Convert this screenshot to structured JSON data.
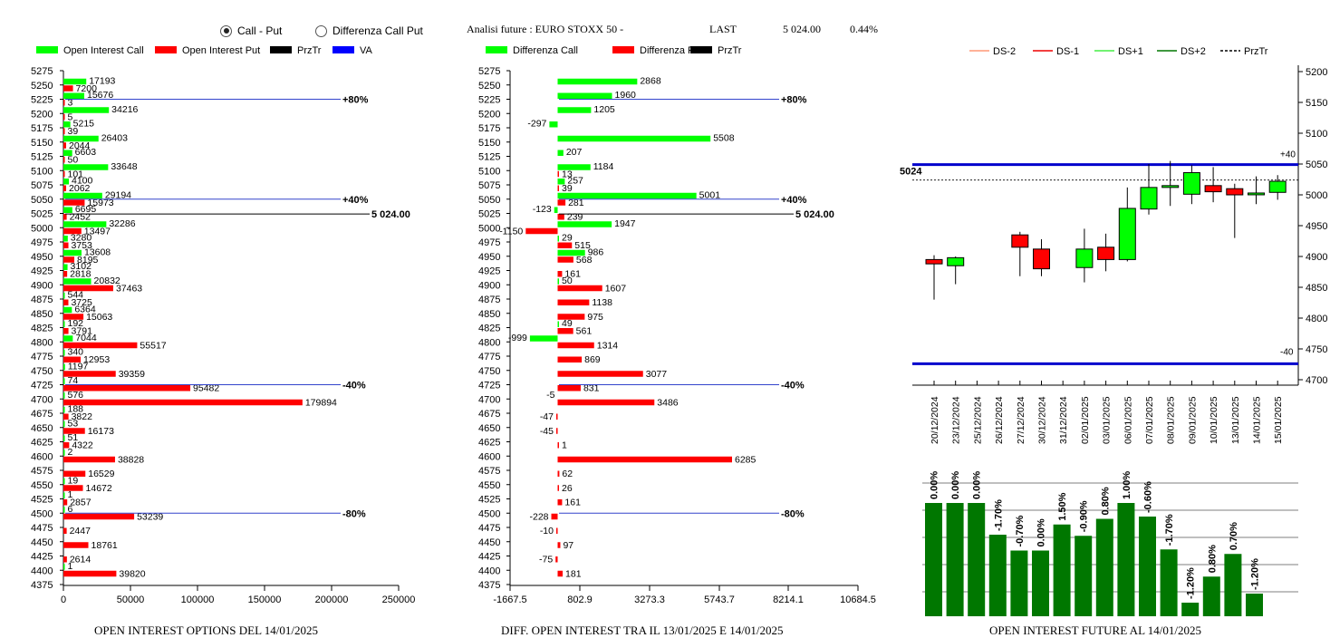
{
  "controls": {
    "option_call_put": "Call - Put",
    "option_diff": "Differenza Call Put"
  },
  "header": {
    "title": "Analisi future : EURO STOXX 50 -",
    "last_label": "LAST",
    "last_value": "5 024.00",
    "change": "0.44%"
  },
  "colors": {
    "call": "#00ff00",
    "put": "#ff0000",
    "va": "#0000ff",
    "oi_future": "#007700"
  },
  "chart_data": [
    {
      "type": "bar",
      "orientation": "horizontal",
      "title": "OPEN INTEREST OPTIONS DEL 14/01/2025",
      "legend": [
        "Open Interest Call",
        "Open Interest Put",
        "PrzTr",
        "VA"
      ],
      "legend_placement": "top",
      "strikes": [
        5275,
        5250,
        5225,
        5200,
        5175,
        5150,
        5125,
        5100,
        5075,
        5050,
        5025,
        5000,
        4975,
        4950,
        4925,
        4900,
        4875,
        4850,
        4825,
        4800,
        4775,
        4750,
        4725,
        4700,
        4675,
        4650,
        4625,
        4600,
        4575,
        4550,
        4525,
        4500,
        4475,
        4450,
        4425,
        4400,
        4375
      ],
      "call": [
        null,
        17193,
        15676,
        34216,
        5215,
        26403,
        6603,
        33648,
        4100,
        29194,
        6695,
        32286,
        3280,
        13608,
        3102,
        20832,
        544,
        6364,
        192,
        7044,
        340,
        1197,
        74,
        576,
        188,
        53,
        51,
        2,
        null,
        19,
        1,
        6,
        null,
        null,
        null,
        1,
        null
      ],
      "put": [
        null,
        7200,
        3,
        5,
        39,
        2044,
        50,
        101,
        2062,
        15973,
        2452,
        13497,
        3753,
        8195,
        2818,
        37463,
        3725,
        15063,
        3791,
        55517,
        12953,
        39359,
        95482,
        179894,
        3822,
        16173,
        4322,
        38828,
        16529,
        14672,
        2857,
        53239,
        2447,
        18761,
        2614,
        39820,
        null
      ],
      "xticks": [
        "0",
        "50000",
        "100000",
        "150000",
        "200000",
        "250000"
      ],
      "xlim": [
        0,
        250000
      ],
      "reference_lines": [
        {
          "label": "+80%",
          "strike": 5225,
          "color": "va"
        },
        {
          "label": "+40%",
          "strike": 5050,
          "color": "va"
        },
        {
          "label": "5 024.00",
          "strike": 5024,
          "color": "prz"
        },
        {
          "label": "-40%",
          "strike": 4725,
          "color": "va"
        },
        {
          "label": "-80%",
          "strike": 4500,
          "color": "va"
        }
      ]
    },
    {
      "type": "bar",
      "orientation": "horizontal",
      "title": "DIFF. OPEN INTEREST TRA IL 13/01/2025 E 14/01/2025",
      "legend": [
        "Differenza Call",
        "Differenza Put",
        "PrzTr"
      ],
      "legend_placement": "top",
      "strikes": [
        5275,
        5250,
        5225,
        5200,
        5175,
        5150,
        5125,
        5100,
        5075,
        5050,
        5025,
        5000,
        4975,
        4950,
        4925,
        4900,
        4875,
        4850,
        4825,
        4800,
        4775,
        4750,
        4725,
        4700,
        4675,
        4650,
        4625,
        4600,
        4575,
        4550,
        4525,
        4500,
        4475,
        4450,
        4425,
        4400,
        4375
      ],
      "call": [
        null,
        2868,
        1960,
        1205,
        -297,
        5508,
        207,
        1184,
        257,
        5001,
        -123,
        1947,
        29,
        986,
        null,
        50,
        null,
        null,
        49,
        -999,
        null,
        null,
        null,
        null,
        null,
        null,
        null,
        null,
        null,
        null,
        null,
        null,
        null,
        null,
        null,
        null,
        null
      ],
      "put": [
        null,
        null,
        null,
        null,
        null,
        null,
        null,
        13,
        39,
        281,
        239,
        -1150,
        515,
        568,
        161,
        1607,
        1138,
        975,
        561,
        1314,
        869,
        3077,
        831,
        3486,
        -47,
        -45,
        1,
        6285,
        62,
        26,
        161,
        -228,
        -10,
        97,
        -75,
        181,
        null
      ],
      "stub_labels": [
        {
          "strike": 4700,
          "text": "-5"
        }
      ],
      "xticks": [
        "-1667.5",
        "802.9",
        "3273.3",
        "5743.7",
        "8214.1",
        "10684.5"
      ],
      "xlim": [
        -1667.5,
        10684.5
      ],
      "reference_lines": [
        {
          "label": "+80%",
          "strike": 5225,
          "color": "va"
        },
        {
          "label": "+40%",
          "strike": 5050,
          "color": "va"
        },
        {
          "label": "5 024.00",
          "strike": 5024,
          "color": "prz"
        },
        {
          "label": "-40%",
          "strike": 4725,
          "color": "va"
        },
        {
          "label": "-80%",
          "strike": 4500,
          "color": "va"
        }
      ]
    },
    {
      "type": "candlestick",
      "legend": [
        "DS-2",
        "DS-1",
        "DS+1",
        "DS+2",
        "PrzTr"
      ],
      "legend_placement": "top",
      "yticks": [
        4700,
        4750,
        4800,
        4850,
        4900,
        4950,
        5000,
        5050,
        5100,
        5150,
        5200
      ],
      "ylim": [
        4700,
        5200
      ],
      "dates": [
        "20/12/2024",
        "23/12/2024",
        "25/12/2024",
        "26/12/2024",
        "27/12/2024",
        "30/12/2024",
        "31/12/2024",
        "02/01/2025",
        "03/01/2025",
        "06/01/2025",
        "07/01/2025",
        "08/01/2025",
        "09/01/2025",
        "10/01/2025",
        "13/01/2025",
        "14/01/2025",
        "15/01/2025"
      ],
      "candles": [
        {
          "o": 4895,
          "h": 4902,
          "l": 4830,
          "c": 4888
        },
        {
          "o": 4885,
          "h": 4900,
          "l": 4855,
          "c": 4898
        },
        null,
        null,
        {
          "o": 4935,
          "h": 4940,
          "l": 4868,
          "c": 4915
        },
        {
          "o": 4912,
          "h": 4928,
          "l": 4868,
          "c": 4880
        },
        null,
        {
          "o": 4882,
          "h": 4945,
          "l": 4858,
          "c": 4912
        },
        {
          "o": 4915,
          "h": 4937,
          "l": 4876,
          "c": 4895
        },
        {
          "o": 4895,
          "h": 5012,
          "l": 4892,
          "c": 4978
        },
        {
          "o": 4977,
          "h": 5050,
          "l": 4968,
          "c": 5012
        },
        {
          "o": 5012,
          "h": 5055,
          "l": 4982,
          "c": 5015
        },
        {
          "o": 5001,
          "h": 5048,
          "l": 4985,
          "c": 5036
        },
        {
          "o": 5015,
          "h": 5045,
          "l": 4988,
          "c": 5005
        },
        {
          "o": 5010,
          "h": 5018,
          "l": 4930,
          "c": 5000
        },
        {
          "o": 5002,
          "h": 5030,
          "l": 4985,
          "c": 5003
        },
        {
          "o": 5004,
          "h": 5032,
          "l": 4992,
          "c": 5022
        }
      ],
      "upper_band": {
        "value": 5049,
        "label": "+40"
      },
      "lower_band": {
        "value": 4726,
        "label": "-40"
      },
      "last": {
        "value": 5024,
        "label": "5024"
      }
    },
    {
      "type": "bar",
      "title": "OPEN INTEREST FUTURE AL 14/01/2025",
      "values": [
        100,
        100,
        100,
        72,
        58,
        58,
        81,
        71,
        86,
        100,
        88,
        59,
        12,
        35,
        55,
        20
      ],
      "labels": [
        "0.00%",
        "0.00%",
        "0.00%",
        "-1.70%",
        "-0.70%",
        "0.00%",
        "1.50%",
        "-0.90%",
        "0.80%",
        "1.00%",
        "-0.60%",
        "-1.70%",
        "-1.20%",
        "0.80%",
        "0.70%",
        "-1.20%"
      ]
    }
  ]
}
